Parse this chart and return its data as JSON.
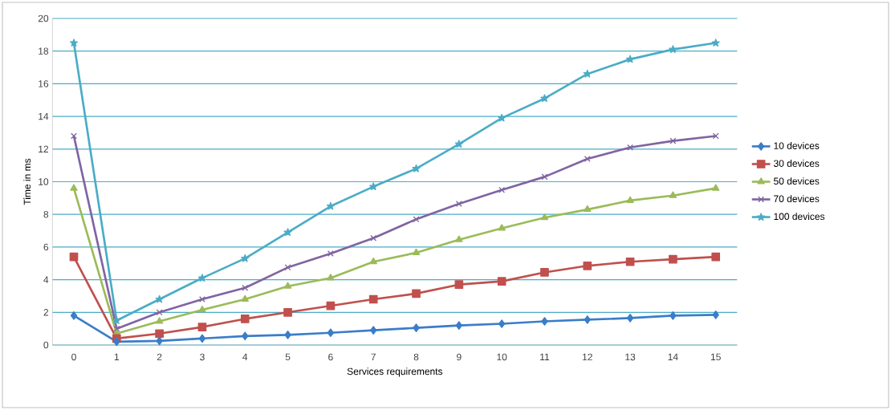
{
  "chart_data": {
    "type": "line",
    "xlabel": "Services requirements",
    "ylabel": "Time in ms",
    "categories": [
      "0",
      "1",
      "2",
      "3",
      "4",
      "5",
      "6",
      "7",
      "8",
      "9",
      "10",
      "11",
      "12",
      "13",
      "14",
      "15"
    ],
    "ylim": [
      0,
      20
    ],
    "yticks": [
      0,
      2,
      4,
      6,
      8,
      10,
      12,
      14,
      16,
      18,
      20
    ],
    "grid": "y",
    "legend": "right",
    "line_style": "solid",
    "series": [
      {
        "name": "10 devices",
        "color": "#3a7dc9",
        "marker": "diamond",
        "values": [
          1.8,
          0.2,
          0.25,
          0.4,
          0.55,
          0.62,
          0.75,
          0.9,
          1.05,
          1.2,
          1.3,
          1.45,
          1.55,
          1.65,
          1.8,
          1.85
        ]
      },
      {
        "name": "30 devices",
        "color": "#c0504d",
        "marker": "square",
        "values": [
          5.4,
          0.4,
          0.7,
          1.1,
          1.6,
          2.0,
          2.4,
          2.8,
          3.15,
          3.7,
          3.9,
          4.45,
          4.85,
          5.1,
          5.25,
          5.4
        ]
      },
      {
        "name": "50 devices",
        "color": "#9bbb59",
        "marker": "triangle",
        "values": [
          9.6,
          0.7,
          1.45,
          2.15,
          2.8,
          3.6,
          4.1,
          5.1,
          5.65,
          6.45,
          7.15,
          7.8,
          8.3,
          8.85,
          9.15,
          9.6
        ]
      },
      {
        "name": "70 devices",
        "color": "#8064a2",
        "marker": "cross",
        "values": [
          12.8,
          1.0,
          2.0,
          2.8,
          3.5,
          4.75,
          5.6,
          6.55,
          7.7,
          8.65,
          9.5,
          10.3,
          11.4,
          12.1,
          12.5,
          12.8
        ]
      },
      {
        "name": "100 devices",
        "color": "#4bacc6",
        "marker": "star",
        "values": [
          18.5,
          1.5,
          2.8,
          4.1,
          5.3,
          6.9,
          8.5,
          9.7,
          10.8,
          12.3,
          13.9,
          15.1,
          16.6,
          17.5,
          18.1,
          18.5
        ]
      }
    ]
  }
}
